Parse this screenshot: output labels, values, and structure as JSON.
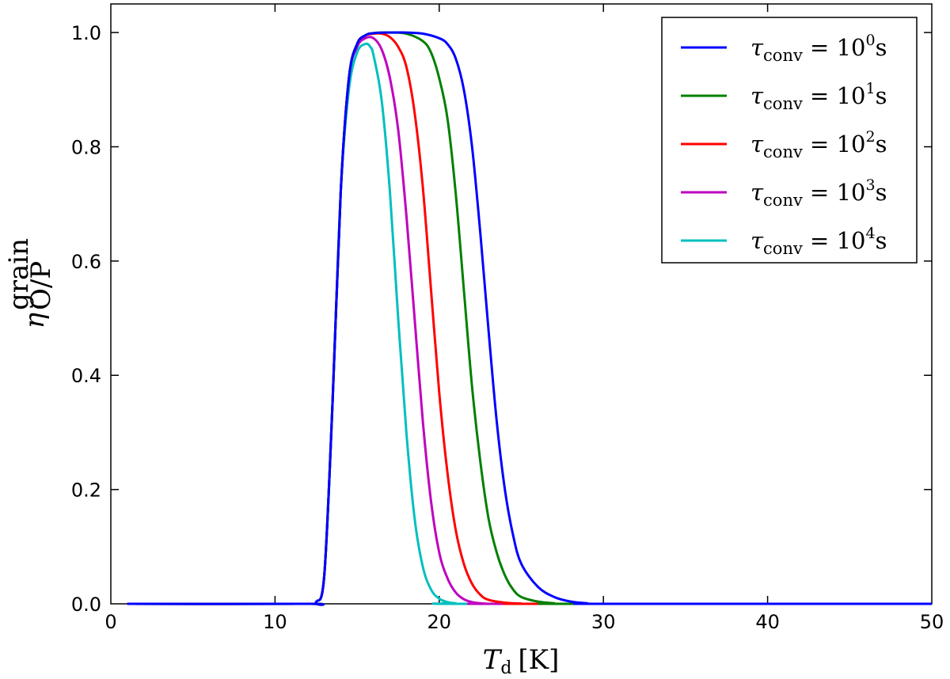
{
  "chart_data": {
    "type": "line",
    "title": "",
    "xlabel": "T",
    "xlabel_sub": "d",
    "xlabel_unit": "[K]",
    "ylabel": "η",
    "ylabel_sub": "O/P",
    "ylabel_sup": "grain",
    "xlim": [
      0,
      50
    ],
    "ylim": [
      0,
      1.05
    ],
    "xticks": [
      "0",
      "10",
      "20",
      "30",
      "40",
      "50"
    ],
    "yticks": [
      "0.0",
      "0.2",
      "0.4",
      "0.6",
      "0.8",
      "1.0"
    ],
    "legend_position": "top-right",
    "grid": false,
    "series": [
      {
        "name": "τconv = 10^0 s",
        "label_parts": [
          "τ",
          "conv",
          " = 10",
          "0",
          "s"
        ],
        "color": "#0000ff",
        "x": [
          1,
          12,
          12.5,
          13,
          13.5,
          14,
          14.5,
          15,
          15.5,
          16,
          17,
          18,
          19,
          20,
          20.5,
          21,
          21.5,
          22,
          22.5,
          23,
          23.5,
          24,
          24.5,
          25,
          26,
          27,
          28,
          29,
          30,
          50
        ],
        "y": [
          0,
          0,
          0.003,
          0.05,
          0.35,
          0.72,
          0.92,
          0.98,
          0.995,
          0.999,
          1.0,
          1.0,
          0.998,
          0.99,
          0.98,
          0.955,
          0.9,
          0.8,
          0.65,
          0.48,
          0.32,
          0.2,
          0.12,
          0.07,
          0.03,
          0.012,
          0.004,
          0.001,
          0,
          0
        ]
      },
      {
        "name": "τconv = 10^1 s",
        "label_parts": [
          "τ",
          "conv",
          " = 10",
          "1",
          "s"
        ],
        "color": "#008000",
        "x": [
          1,
          12,
          12.5,
          13,
          13.5,
          14,
          14.5,
          15,
          15.5,
          16,
          17,
          18,
          19,
          19.5,
          20,
          20.5,
          21,
          21.5,
          22,
          22.5,
          23,
          23.5,
          24,
          24.5,
          25,
          26,
          27,
          28,
          50
        ],
        "y": [
          0,
          0,
          0.003,
          0.05,
          0.35,
          0.72,
          0.92,
          0.98,
          0.995,
          0.999,
          1.0,
          0.998,
          0.985,
          0.965,
          0.92,
          0.85,
          0.72,
          0.55,
          0.38,
          0.25,
          0.15,
          0.09,
          0.05,
          0.025,
          0.012,
          0.004,
          0.001,
          0,
          0
        ]
      },
      {
        "name": "τconv = 10^2 s",
        "label_parts": [
          "τ",
          "conv",
          " = 10",
          "2",
          "s"
        ],
        "color": "#ff0000",
        "x": [
          1,
          12,
          12.5,
          13,
          13.5,
          14,
          14.5,
          15,
          15.5,
          16,
          16.5,
          17,
          17.5,
          18,
          18.5,
          19,
          19.5,
          20,
          20.5,
          21,
          21.5,
          22,
          22.5,
          23,
          24,
          25,
          26,
          50
        ],
        "y": [
          0,
          0,
          0.003,
          0.05,
          0.35,
          0.72,
          0.92,
          0.98,
          0.995,
          0.998,
          0.998,
          0.992,
          0.975,
          0.94,
          0.86,
          0.73,
          0.55,
          0.37,
          0.23,
          0.13,
          0.07,
          0.035,
          0.016,
          0.007,
          0.002,
          0.0005,
          0,
          0
        ]
      },
      {
        "name": "τconv = 10^3 s",
        "label_parts": [
          "τ",
          "conv",
          " = 10",
          "3",
          "s"
        ],
        "color": "#bf00bf",
        "x": [
          1,
          12,
          12.5,
          13,
          13.5,
          14,
          14.5,
          15,
          15.5,
          16,
          16.5,
          17,
          17.5,
          18,
          18.5,
          19,
          19.5,
          20,
          20.5,
          21,
          21.5,
          22,
          22.5,
          23,
          24,
          50
        ],
        "y": [
          0,
          0,
          0.003,
          0.05,
          0.35,
          0.72,
          0.92,
          0.975,
          0.99,
          0.99,
          0.97,
          0.92,
          0.83,
          0.68,
          0.5,
          0.32,
          0.18,
          0.09,
          0.045,
          0.02,
          0.008,
          0.003,
          0.001,
          0,
          0,
          0
        ]
      },
      {
        "name": "τconv = 10^4 s",
        "label_parts": [
          "τ",
          "conv",
          " = 10",
          "4",
          "s"
        ],
        "color": "#00bfbf",
        "x": [
          1,
          12,
          12.5,
          13,
          13.5,
          14,
          14.5,
          15,
          15.5,
          15.8,
          16,
          16.5,
          17,
          17.5,
          18,
          18.5,
          19,
          19.5,
          20,
          20.5,
          21,
          22,
          50
        ],
        "y": [
          0,
          0,
          0.003,
          0.05,
          0.35,
          0.72,
          0.9,
          0.965,
          0.98,
          0.975,
          0.96,
          0.88,
          0.72,
          0.5,
          0.3,
          0.15,
          0.065,
          0.025,
          0.009,
          0.003,
          0.001,
          0,
          0
        ]
      }
    ]
  }
}
